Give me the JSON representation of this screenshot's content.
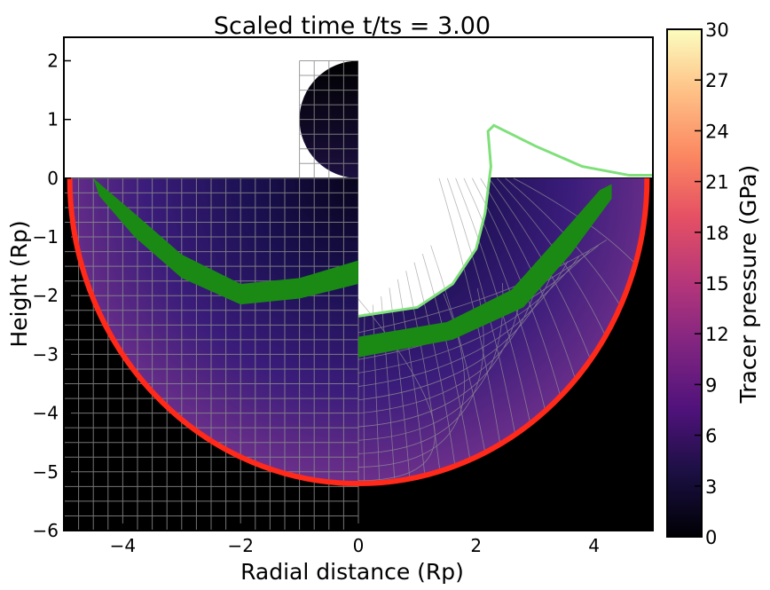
{
  "chart_data": {
    "type": "heatmap",
    "title": "Scaled time t/ts =  3.00",
    "xlabel": "Radial distance (Rp)",
    "ylabel": "Height (Rp)",
    "colorbar_label": "Tracer pressure (GPa)",
    "xlim": [
      -5,
      5
    ],
    "ylim": [
      -6,
      2.4
    ],
    "x_ticks": [
      -4,
      -2,
      0,
      2,
      4
    ],
    "x_tick_labels": [
      "−4",
      "−2",
      "0",
      "2",
      "4"
    ],
    "y_ticks": [
      -6,
      -5,
      -4,
      -3,
      -2,
      -1,
      0,
      1,
      2
    ],
    "y_tick_labels": [
      "−6",
      "−5",
      "−4",
      "−3",
      "−2",
      "−1",
      "0",
      "1",
      "2"
    ],
    "colorbar_range": [
      0,
      30
    ],
    "colorbar_ticks": [
      "0",
      "3",
      "6",
      "9",
      "12",
      "15",
      "18",
      "21",
      "24",
      "27",
      "30"
    ],
    "colormap": "magma",
    "crater_depth": -5.2,
    "crater_rim_radius": 4.65,
    "projectile_radius": 1.0,
    "projectile_center": [
      0,
      1
    ],
    "grid_spacing": 0.25,
    "colors": {
      "background": "#000000",
      "grid": "#8a8a8a",
      "shock_front": "#ff2a1a",
      "tracer_band": "#1a8a14",
      "surface_line": "#7fe07a"
    }
  }
}
